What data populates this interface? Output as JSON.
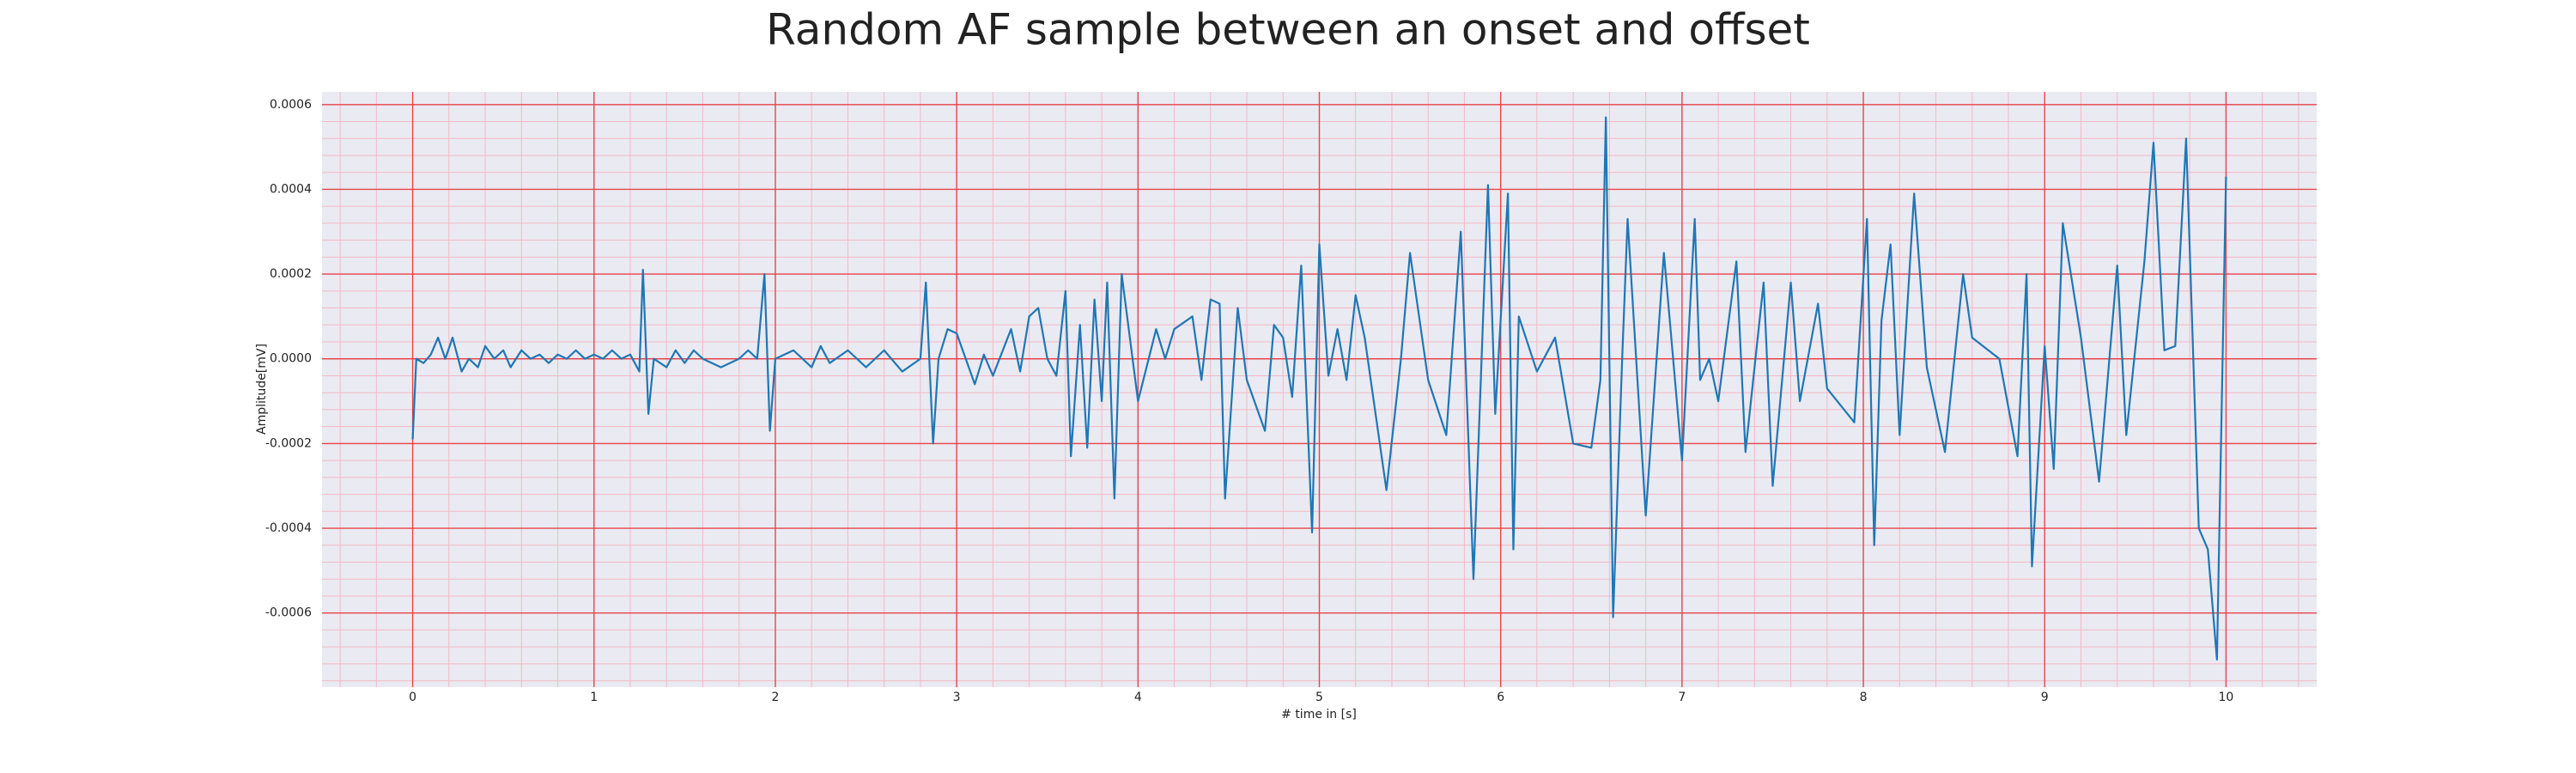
{
  "chart_data": {
    "type": "line",
    "title": "Random AF sample between an onset and offset",
    "x_label": "# time in [s]",
    "y_label": "Amplitude[mV]",
    "color": "#1f77b4",
    "grid": true,
    "minor_grid": true,
    "xlim": [
      -0.5,
      10.5
    ],
    "xticks": [
      0,
      1,
      2,
      3,
      4,
      5,
      6,
      7,
      8,
      9,
      10
    ],
    "ylim": [
      -0.000775,
      0.00063
    ],
    "yticks": [
      -0.0006,
      -0.0004,
      -0.0002,
      {
        "value": 0,
        "label": "0.0000"
      },
      0.0002,
      0.0004,
      0.0006
    ],
    "x": [
      0,
      0.02,
      0.06,
      0.1,
      0.14,
      0.18,
      0.22,
      0.27,
      0.31,
      0.36,
      0.4,
      0.45,
      0.5,
      0.54,
      0.6,
      0.65,
      0.7,
      0.75,
      0.8,
      0.85,
      0.9,
      0.95,
      1.0,
      1.05,
      1.1,
      1.15,
      1.2,
      1.25,
      1.27,
      1.3,
      1.33,
      1.4,
      1.45,
      1.5,
      1.55,
      1.6,
      1.7,
      1.8,
      1.85,
      1.9,
      1.94,
      1.97,
      2.0,
      2.1,
      2.2,
      2.25,
      2.3,
      2.4,
      2.5,
      2.6,
      2.7,
      2.8,
      2.83,
      2.87,
      2.9,
      2.95,
      3.0,
      3.05,
      3.1,
      3.15,
      3.2,
      3.3,
      3.35,
      3.4,
      3.45,
      3.5,
      3.55,
      3.6,
      3.63,
      3.68,
      3.72,
      3.76,
      3.8,
      3.83,
      3.87,
      3.91,
      4.0,
      4.1,
      4.15,
      4.2,
      4.3,
      4.35,
      4.4,
      4.45,
      4.48,
      4.55,
      4.6,
      4.7,
      4.75,
      4.8,
      4.85,
      4.9,
      4.96,
      5.0,
      5.05,
      5.1,
      5.15,
      5.2,
      5.25,
      5.37,
      5.45,
      5.5,
      5.6,
      5.7,
      5.78,
      5.85,
      5.93,
      5.97,
      6.04,
      6.07,
      6.1,
      6.2,
      6.3,
      6.4,
      6.5,
      6.55,
      6.58,
      6.62,
      6.67,
      6.7,
      6.8,
      6.9,
      7.0,
      7.07,
      7.1,
      7.15,
      7.2,
      7.3,
      7.35,
      7.45,
      7.5,
      7.6,
      7.65,
      7.75,
      7.8,
      7.95,
      8.02,
      8.06,
      8.1,
      8.15,
      8.2,
      8.28,
      8.35,
      8.45,
      8.55,
      8.6,
      8.75,
      8.85,
      8.9,
      8.93,
      9.0,
      9.05,
      9.1,
      9.2,
      9.3,
      9.4,
      9.45,
      9.55,
      9.6,
      9.66,
      9.72,
      9.78,
      9.85,
      9.9,
      9.95,
      10.0
    ],
    "values": [
      -0.00019,
      0.0,
      -1e-05,
      1e-05,
      5e-05,
      0.0,
      5e-05,
      -3e-05,
      0.0,
      -2e-05,
      3e-05,
      0.0,
      2e-05,
      -2e-05,
      2e-05,
      0.0,
      1e-05,
      -1e-05,
      1e-05,
      0.0,
      2e-05,
      0.0,
      1e-05,
      0.0,
      2e-05,
      0.0,
      1e-05,
      -3e-05,
      0.00021,
      -0.00013,
      0.0,
      -2e-05,
      2e-05,
      -1e-05,
      2e-05,
      0.0,
      -2e-05,
      0.0,
      2e-05,
      0.0,
      0.0002,
      -0.00017,
      0.0,
      2e-05,
      -2e-05,
      3e-05,
      -1e-05,
      2e-05,
      -2e-05,
      2e-05,
      -3e-05,
      0.0,
      0.00018,
      -0.0002,
      0.0,
      7e-05,
      6e-05,
      0.0,
      -6e-05,
      1e-05,
      -4e-05,
      7e-05,
      -3e-05,
      0.0001,
      0.00012,
      0.0,
      -4e-05,
      0.00016,
      -0.00023,
      8e-05,
      -0.00021,
      0.00014,
      -0.0001,
      0.00018,
      -0.00033,
      0.0002,
      -0.0001,
      7e-05,
      0.0,
      7e-05,
      0.0001,
      -5e-05,
      0.00014,
      0.00013,
      -0.00033,
      0.00012,
      -5e-05,
      -0.00017,
      8e-05,
      5e-05,
      -9e-05,
      0.00022,
      -0.00041,
      0.00027,
      -4e-05,
      7e-05,
      -5e-05,
      0.00015,
      5e-05,
      -0.00031,
      0.0,
      0.00025,
      -5e-05,
      -0.00018,
      0.0003,
      -0.00052,
      0.00041,
      -0.00013,
      0.00039,
      -0.00045,
      0.0001,
      -3e-05,
      5e-05,
      -0.0002,
      -0.00021,
      -5e-05,
      0.00057,
      -0.00061,
      0.0,
      0.00033,
      -0.00037,
      0.00025,
      -0.00024,
      0.00033,
      -5e-05,
      0.0,
      -0.0001,
      0.00023,
      -0.00022,
      0.00018,
      -0.0003,
      0.00018,
      -0.0001,
      0.00013,
      -7e-05,
      -0.00015,
      0.00033,
      -0.00044,
      9e-05,
      0.00027,
      -0.00018,
      0.00039,
      -2e-05,
      -0.00022,
      0.0002,
      5e-05,
      0.0,
      -0.00023,
      0.0002,
      -0.00049,
      3e-05,
      -0.00026,
      0.00032,
      5e-05,
      -0.00029,
      0.00022,
      -0.00018,
      0.00023,
      0.00051,
      2e-05,
      3e-05,
      0.00052,
      -0.0004,
      -0.00045,
      -0.00071,
      0.00043
    ]
  }
}
